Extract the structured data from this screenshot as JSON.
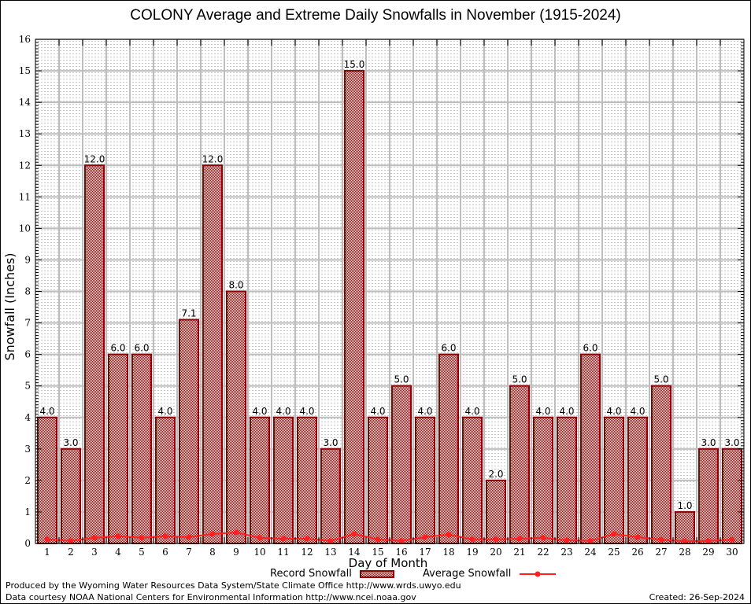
{
  "chart_data": {
    "type": "bar",
    "title": "COLONY Average and Extreme Daily Snowfalls in November (1915-2024)",
    "xlabel": "Day of Month",
    "ylabel": "Snowfall (Inches)",
    "ylim": [
      0,
      16
    ],
    "yticks": [
      0,
      1,
      2,
      3,
      4,
      5,
      6,
      7,
      8,
      9,
      10,
      11,
      12,
      13,
      14,
      15,
      16
    ],
    "grid": true,
    "categories": [
      1,
      2,
      3,
      4,
      5,
      6,
      7,
      8,
      9,
      10,
      11,
      12,
      13,
      14,
      15,
      16,
      17,
      18,
      19,
      20,
      21,
      22,
      23,
      24,
      25,
      26,
      27,
      28,
      29,
      30
    ],
    "series": [
      {
        "name": "Record Snowfall",
        "type": "bar",
        "color": "#990000",
        "values": [
          4.0,
          3.0,
          12.0,
          6.0,
          6.0,
          4.0,
          7.1,
          12.0,
          8.0,
          4.0,
          4.0,
          4.0,
          3.0,
          15.0,
          4.0,
          5.0,
          4.0,
          6.0,
          4.0,
          2.0,
          5.0,
          4.0,
          4.0,
          6.0,
          4.0,
          4.0,
          5.0,
          1.0,
          3.0,
          3.0
        ],
        "labels": [
          "4.0",
          "3.0",
          "12.0",
          "6.0",
          "6.0",
          "4.0",
          "7.1",
          "12.0",
          "8.0",
          "4.0",
          "4.0",
          "4.0",
          "3.0",
          "15.0",
          "4.0",
          "5.0",
          "4.0",
          "6.0",
          "4.0",
          "2.0",
          "5.0",
          "4.0",
          "4.0",
          "6.0",
          "4.0",
          "4.0",
          "5.0",
          "1.0",
          "3.0",
          "3.0"
        ]
      },
      {
        "name": "Average Snowfall",
        "type": "line",
        "color": "#ff2020",
        "values": [
          0.13,
          0.08,
          0.18,
          0.23,
          0.18,
          0.23,
          0.2,
          0.3,
          0.35,
          0.18,
          0.15,
          0.15,
          0.08,
          0.3,
          0.13,
          0.08,
          0.2,
          0.28,
          0.13,
          0.13,
          0.15,
          0.18,
          0.1,
          0.08,
          0.3,
          0.2,
          0.12,
          0.07,
          0.08,
          0.12
        ]
      }
    ],
    "legend": [
      "Record Snowfall",
      "Average Snowfall"
    ],
    "legend_position": "bottom-center"
  },
  "footer": {
    "produced_by": "Produced by the Wyoming Water Resources Data System/State Climate Office http://www.wrds.uwyo.edu",
    "data_courtesy": "Data courtesy NOAA National Centers for Environmental Information http://www.ncei.noaa.gov",
    "created": "Created:  26-Sep-2024"
  }
}
